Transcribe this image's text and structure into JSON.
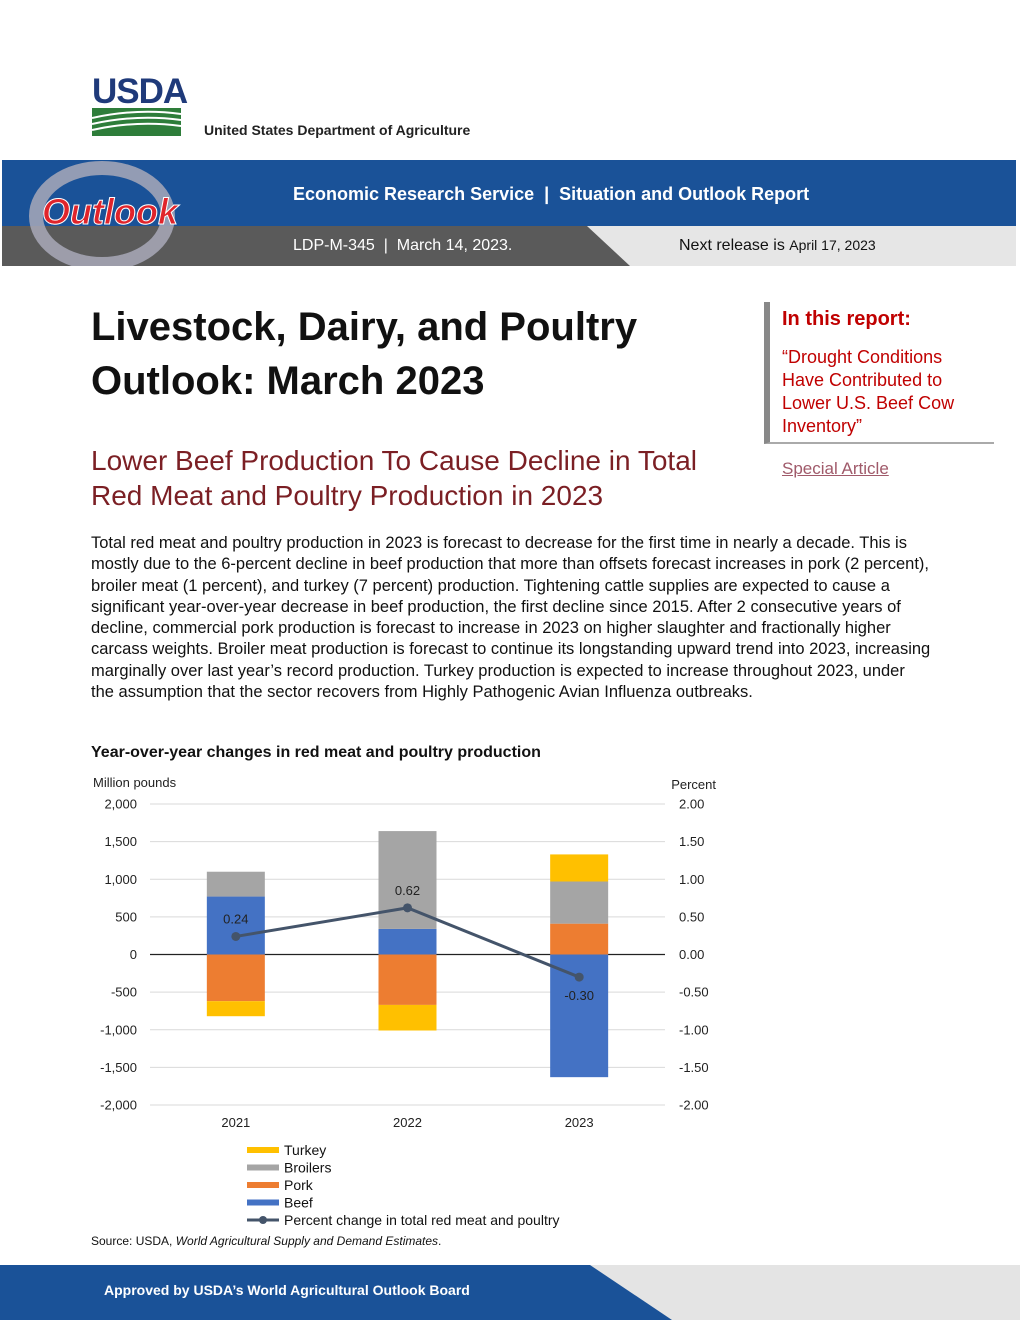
{
  "header": {
    "logo_text": "USDA",
    "department": "United States Department of Agriculture",
    "agency_line": "Economic Research Service  |  Situation and Outlook Report",
    "report_id_date": "LDP-M-345  |  March 14, 2023.",
    "next_release_label": "Next release is",
    "next_release_date": "April 17, 2023",
    "outlook_logo_text": "Outlook"
  },
  "title": "Livestock, Dairy, and Poultry Outlook: March 2023",
  "subtitle": "Lower Beef Production To Cause Decline in Total Red Meat and Poultry Production in 2023",
  "sidebar": {
    "heading": "In this report:",
    "quote": "“Drought Conditions Have Contributed to Lower U.S. Beef Cow Inventory”",
    "link": "Special Article"
  },
  "body": "Total red meat and poultry production in 2023 is forecast to decrease for the first time in nearly a decade. This is mostly due to the 6-percent decline in beef production that more than offsets forecast increases in pork (2 percent), broiler meat (1 percent), and turkey (7 percent) production. Tightening cattle supplies are expected to cause a significant year-over-year decrease in beef production, the first decline since 2015. After 2 consecutive years of decline, commercial pork production is forecast to increase in 2023 on higher slaughter and fractionally higher carcass weights. Broiler meat production is forecast to continue its longstanding upward trend into 2023, increasing marginally over last year’s record production. Turkey production is expected to increase throughout 2023, under the assumption that the sector recovers from Highly Pathogenic Avian Influenza outbreaks.",
  "chart_data": {
    "type": "bar",
    "stacked": true,
    "title": "Year-over-year changes in red meat and poultry production",
    "ylabel": "Million pounds",
    "ylabel_right": "Percent",
    "ylim": [
      -2000,
      2000
    ],
    "ylim_right": [
      -2.0,
      2.0
    ],
    "y_ticks": [
      "2,000",
      "1,500",
      "1,000",
      "500",
      "0",
      "-500",
      "-1,000",
      "-1,500",
      "-2,000"
    ],
    "y_ticks_right": [
      "2.00",
      "1.50",
      "1.00",
      "0.50",
      "0.00",
      "-0.50",
      "-1.00",
      "-1.50",
      "-2.00"
    ],
    "categories": [
      "2021",
      "2022",
      "2023"
    ],
    "series": [
      {
        "name": "Beef",
        "color": "#4472c4",
        "values": [
          770,
          340,
          -1630
        ]
      },
      {
        "name": "Pork",
        "color": "#ed7d31",
        "values": [
          -620,
          -670,
          410
        ]
      },
      {
        "name": "Broilers",
        "color": "#a5a5a5",
        "values": [
          330,
          1300,
          560
        ]
      },
      {
        "name": "Turkey",
        "color": "#ffc000",
        "values": [
          -200,
          -340,
          360
        ]
      }
    ],
    "line_series": {
      "name": "Percent change in total red meat and poultry",
      "color": "#44546a",
      "values": [
        0.24,
        0.62,
        -0.3
      ],
      "labels": [
        "0.24",
        "0.62",
        "-0.30"
      ]
    },
    "legend_order": [
      "Turkey",
      "Broilers",
      "Pork",
      "Beef",
      "Percent change in total red meat and poultry"
    ],
    "legend_position": "bottom",
    "grid": true
  },
  "source": {
    "prefix": "Source: USDA, ",
    "italic": "World Agricultural Supply and Demand Estimates",
    "suffix": "."
  },
  "footer": "Approved by USDA’s World Agricultural Outlook Board"
}
